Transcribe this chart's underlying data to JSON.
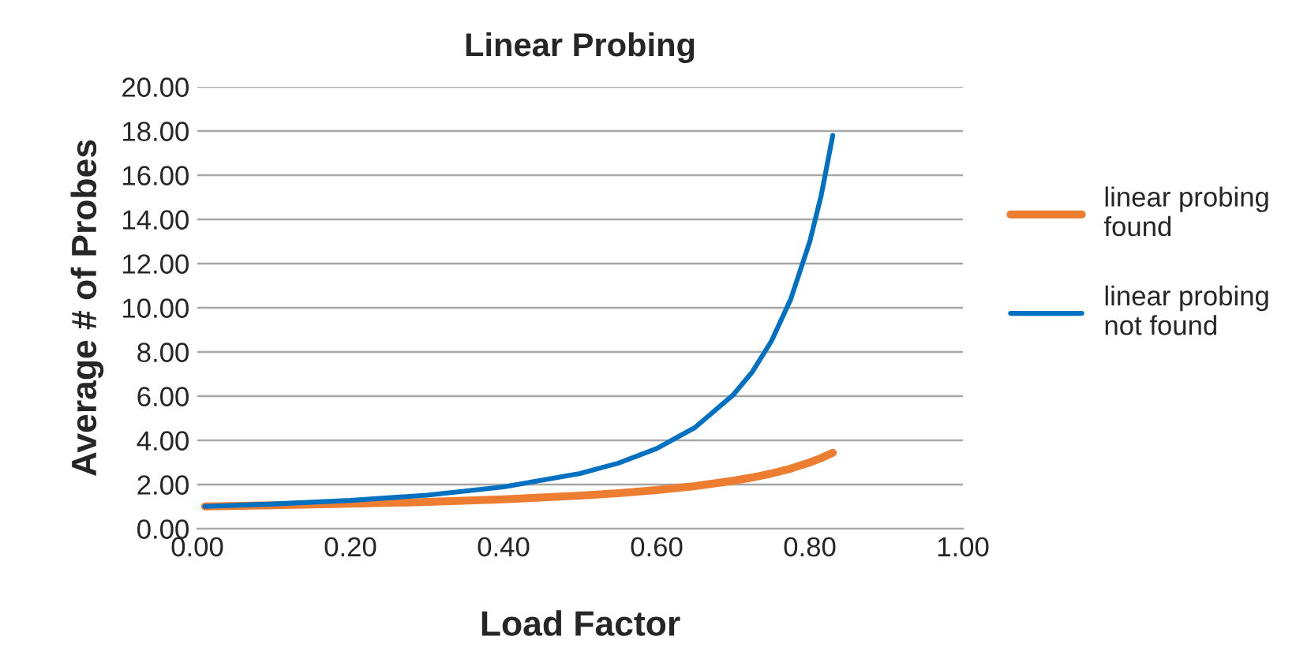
{
  "chart_data": {
    "type": "line",
    "title": "Linear Probing",
    "xlabel": "Load Factor",
    "ylabel": "Average # of Probes",
    "x": [
      0.01,
      0.1,
      0.2,
      0.3,
      0.4,
      0.5,
      0.55,
      0.6,
      0.65,
      0.7,
      0.725,
      0.75,
      0.775,
      0.8,
      0.815,
      0.83
    ],
    "series": [
      {
        "name": "linear probing found",
        "color": "#ed7d31",
        "values": [
          1.01,
          1.06,
          1.13,
          1.21,
          1.33,
          1.5,
          1.61,
          1.75,
          1.93,
          2.17,
          2.32,
          2.5,
          2.72,
          3.0,
          3.2,
          3.44
        ]
      },
      {
        "name": "linear probing not found",
        "color": "#0070c0",
        "values": [
          1.01,
          1.12,
          1.28,
          1.52,
          1.89,
          2.5,
          2.97,
          3.63,
          4.58,
          6.06,
          7.1,
          8.5,
          10.38,
          13.0,
          15.1,
          17.8
        ]
      }
    ],
    "xlim": [
      0,
      1
    ],
    "ylim": [
      0,
      20
    ],
    "xticks": [
      {
        "value": 0,
        "label": "0.00"
      },
      {
        "value": 0.2,
        "label": "0.20"
      },
      {
        "value": 0.4,
        "label": "0.40"
      },
      {
        "value": 0.6,
        "label": "0.60"
      },
      {
        "value": 0.8,
        "label": "0.80"
      },
      {
        "value": 1,
        "label": "1.00"
      }
    ],
    "yticks": [
      {
        "value": 0,
        "label": "0.00"
      },
      {
        "value": 2,
        "label": "2.00"
      },
      {
        "value": 4,
        "label": "4.00"
      },
      {
        "value": 6,
        "label": "6.00"
      },
      {
        "value": 8,
        "label": "8.00"
      },
      {
        "value": 10,
        "label": "10.00"
      },
      {
        "value": 12,
        "label": "12.00"
      },
      {
        "value": 14,
        "label": "14.00"
      },
      {
        "value": 16,
        "label": "16.00"
      },
      {
        "value": 18,
        "label": "18.00"
      },
      {
        "value": 20,
        "label": "20.00"
      }
    ],
    "grid": "y",
    "legend": "right",
    "marker": "none",
    "line_style": "solid"
  }
}
